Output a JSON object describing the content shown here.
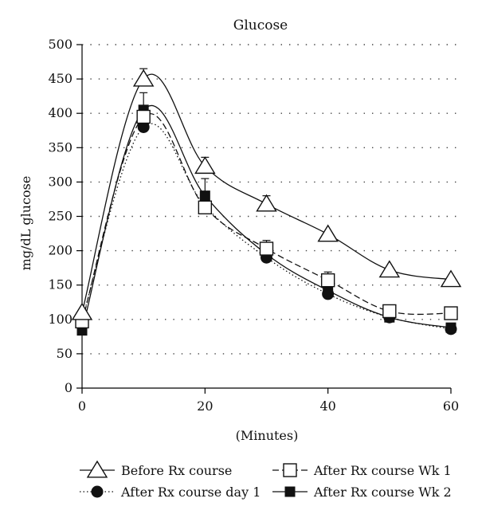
{
  "chart_data": {
    "type": "line",
    "title": "Glucose",
    "xlabel": "(Minutes)",
    "ylabel": "mg/dL glucose",
    "xlim": [
      0,
      60
    ],
    "ylim": [
      0,
      500
    ],
    "xticks": [
      0,
      20,
      40,
      60
    ],
    "yticks": [
      0,
      50,
      100,
      150,
      200,
      250,
      300,
      350,
      400,
      450,
      500
    ],
    "grid": "horizontal-dotted",
    "legend_position": "bottom",
    "series": [
      {
        "name": "Before Rx course",
        "marker": "open-triangle",
        "line": "solid",
        "x": [
          0,
          10,
          20,
          30,
          40,
          50,
          60
        ],
        "y": [
          110,
          450,
          323,
          268,
          224,
          172,
          158
        ],
        "err": [
          0,
          15,
          13,
          12,
          0,
          0,
          0
        ]
      },
      {
        "name": "After Rx course day 1",
        "marker": "filled-circle",
        "line": "dotted",
        "x": [
          0,
          10,
          20,
          30,
          40,
          50,
          60
        ],
        "y": [
          100,
          380,
          265,
          190,
          137,
          103,
          86
        ],
        "err": [
          0,
          0,
          0,
          0,
          0,
          0,
          0
        ]
      },
      {
        "name": "After Rx course Wk 1",
        "marker": "open-square",
        "line": "dashed",
        "x": [
          0,
          10,
          20,
          30,
          40,
          50,
          60
        ],
        "y": [
          97,
          395,
          263,
          203,
          157,
          112,
          109
        ],
        "err": [
          0,
          0,
          0,
          12,
          12,
          0,
          0
        ]
      },
      {
        "name": "After Rx course Wk 2",
        "marker": "filled-square",
        "line": "solid",
        "x": [
          0,
          10,
          20,
          30,
          40,
          50,
          60
        ],
        "y": [
          84,
          405,
          280,
          195,
          142,
          103,
          88
        ],
        "err": [
          0,
          25,
          25,
          0,
          0,
          0,
          0
        ]
      }
    ]
  }
}
